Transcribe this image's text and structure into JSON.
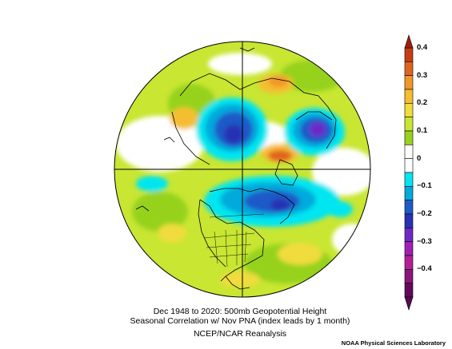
{
  "map": {
    "projection": "north-polar-stereographic",
    "field": "500mb geopotential height correlation"
  },
  "caption": {
    "line1": "Dec 1948 to 2020: 500mb Geopotential Height",
    "line2": "Seasonal Correlation w/ Nov PNA (index leads by 1 month)",
    "line3": "NCEP/NCAR Reanalysis"
  },
  "credit": "NOAA Physical Sciences Laboratory",
  "colorbar": {
    "labels": [
      "0.4",
      "0.3",
      "0.2",
      "0.1",
      "0",
      "−0.1",
      "−0.2",
      "−0.3",
      "−0.4"
    ],
    "bins": [
      {
        "color": "#c83c14"
      },
      {
        "color": "#e0641e"
      },
      {
        "color": "#f0962a"
      },
      {
        "color": "#f5be30"
      },
      {
        "color": "#f0dc3c"
      },
      {
        "color": "#c8e632"
      },
      {
        "color": "#96d21e"
      },
      {
        "color": "#ffffff"
      },
      {
        "color": "#ffffff"
      },
      {
        "color": "#00e6f0"
      },
      {
        "color": "#00aadc"
      },
      {
        "color": "#1e5ac8"
      },
      {
        "color": "#2832b4"
      },
      {
        "color": "#6e28c8"
      },
      {
        "color": "#a01eb4"
      },
      {
        "color": "#b41e96"
      },
      {
        "color": "#8c147a"
      },
      {
        "color": "#640a5a"
      }
    ],
    "top_arrow_color": "#a01e0a",
    "bottom_arrow_color": "#5a0a50"
  }
}
